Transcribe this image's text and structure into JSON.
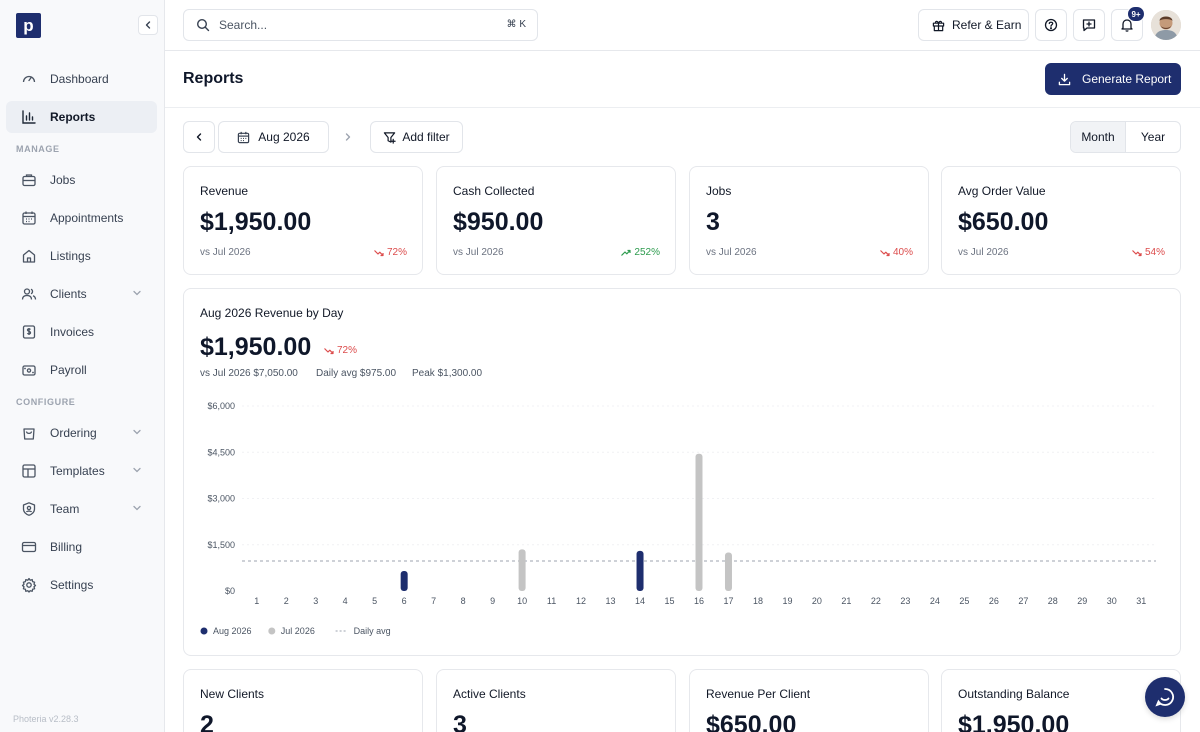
{
  "sidebar": {
    "logo_letter": "p",
    "items": [
      {
        "label": "Dashboard",
        "icon": "gauge-icon"
      },
      {
        "label": "Reports",
        "icon": "bar-chart-icon",
        "active": true
      }
    ],
    "manage_label": "MANAGE",
    "manage_items": [
      {
        "label": "Jobs",
        "icon": "briefcase-icon"
      },
      {
        "label": "Appointments",
        "icon": "calendar-icon"
      },
      {
        "label": "Listings",
        "icon": "house-icon"
      },
      {
        "label": "Clients",
        "icon": "users-icon",
        "chevron": true
      },
      {
        "label": "Invoices",
        "icon": "invoice-icon"
      },
      {
        "label": "Payroll",
        "icon": "wallet-icon"
      }
    ],
    "configure_label": "CONFIGURE",
    "configure_items": [
      {
        "label": "Ordering",
        "icon": "shopping-bag-icon",
        "chevron": true
      },
      {
        "label": "Templates",
        "icon": "template-icon",
        "chevron": true
      },
      {
        "label": "Team",
        "icon": "shield-icon",
        "chevron": true
      },
      {
        "label": "Billing",
        "icon": "credit-card-icon"
      },
      {
        "label": "Settings",
        "icon": "gear-icon"
      }
    ],
    "version": "Photeria v2.28.3"
  },
  "topbar": {
    "search_placeholder": "Search...",
    "search_shortcut": "⌘ K",
    "refer_label": "Refer & Earn",
    "notification_badge": "9+"
  },
  "page": {
    "title": "Reports",
    "generate_label": "Generate Report"
  },
  "filters": {
    "period": "Aug 2026",
    "add_filter_label": "Add filter",
    "segments": [
      "Month",
      "Year"
    ],
    "selected_segment": "Month"
  },
  "kpis": [
    {
      "title": "Revenue",
      "value": "$1,950.00",
      "vs": "vs Jul 2026",
      "change": "72%",
      "direction": "down"
    },
    {
      "title": "Cash Collected",
      "value": "$950.00",
      "vs": "vs Jul 2026",
      "change": "252%",
      "direction": "up"
    },
    {
      "title": "Jobs",
      "value": "3",
      "vs": "vs Jul 2026",
      "change": "40%",
      "direction": "down"
    },
    {
      "title": "Avg Order Value",
      "value": "$650.00",
      "vs": "vs Jul 2026",
      "change": "54%",
      "direction": "down"
    }
  ],
  "revenue_chart": {
    "title": "Aug 2026 Revenue by Day",
    "total": "$1,950.00",
    "change": "72%",
    "vs_text": "vs Jul 2026 $7,050.00",
    "daily_avg_text": "Daily avg $975.00",
    "peak_text": "Peak $1,300.00"
  },
  "chart_data": {
    "type": "bar",
    "categories": [
      "1",
      "2",
      "3",
      "4",
      "5",
      "6",
      "7",
      "8",
      "9",
      "10",
      "11",
      "12",
      "13",
      "14",
      "15",
      "16",
      "17",
      "18",
      "19",
      "20",
      "21",
      "22",
      "23",
      "24",
      "25",
      "26",
      "27",
      "28",
      "29",
      "30",
      "31"
    ],
    "series": [
      {
        "name": "Aug 2026",
        "color": "#1e2e6e",
        "values": [
          0,
          0,
          0,
          0,
          0,
          650,
          0,
          0,
          0,
          0,
          0,
          0,
          0,
          1300,
          0,
          0,
          0,
          0,
          0,
          0,
          0,
          0,
          0,
          0,
          0,
          0,
          0,
          0,
          0,
          0,
          0
        ]
      },
      {
        "name": "Jul 2026",
        "color": "#c4c4c4",
        "values": [
          0,
          0,
          0,
          0,
          0,
          0,
          0,
          0,
          0,
          1350,
          0,
          0,
          0,
          0,
          0,
          4450,
          1250,
          0,
          0,
          0,
          0,
          0,
          0,
          0,
          0,
          0,
          0,
          0,
          0,
          0,
          0
        ]
      }
    ],
    "reference_line": {
      "name": "Daily avg",
      "value": 975
    },
    "yticks": [
      "$0",
      "$1,500",
      "$3,000",
      "$4,500",
      "$6,000"
    ],
    "ylim": [
      0,
      6000
    ],
    "legend_position": "bottom-left"
  },
  "bottom_kpis": [
    {
      "title": "New Clients",
      "value": "2"
    },
    {
      "title": "Active Clients",
      "value": "3"
    },
    {
      "title": "Revenue Per Client",
      "value": "$650.00"
    },
    {
      "title": "Outstanding Balance",
      "value": "$1,950.00"
    }
  ],
  "colors": {
    "accent": "#1e2e6e",
    "down": "#dc4c4c",
    "up": "#2e9c4f",
    "prior": "#c4c4c4"
  }
}
